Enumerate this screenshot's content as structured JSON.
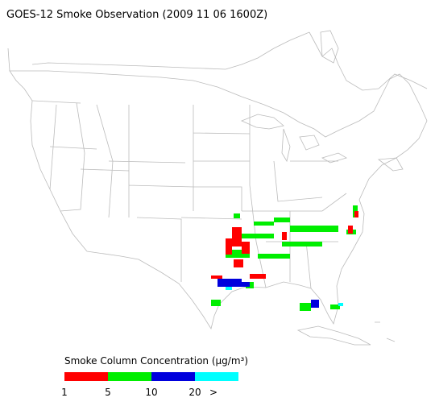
{
  "header": {
    "title": "GOES-12 Smoke Observation (2009 11 06  1600Z)"
  },
  "legend": {
    "title": "Smoke Column Concentration (μg/m³)",
    "segments": [
      {
        "color": "#ff0000",
        "label": "1"
      },
      {
        "color": "#00ee00",
        "label": "5"
      },
      {
        "color": "#0000dd",
        "label": "10"
      },
      {
        "color": "#00ffff",
        "label": "20"
      }
    ],
    "end_label": ">"
  }
}
